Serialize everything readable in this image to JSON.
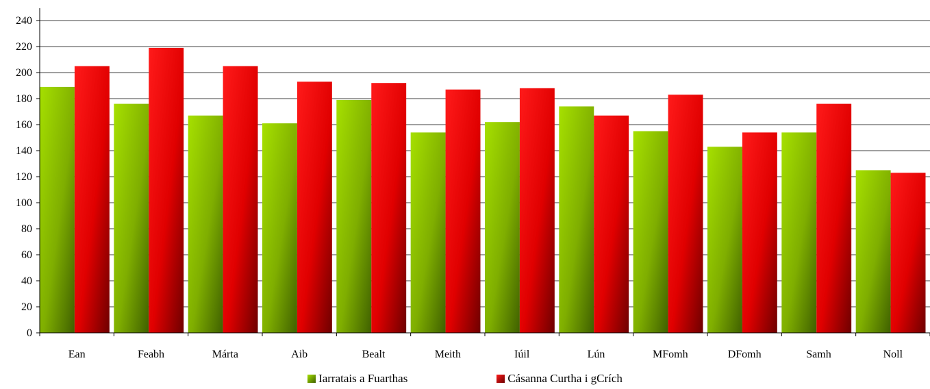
{
  "chart_data": {
    "type": "bar",
    "categories": [
      "Ean",
      "Feabh",
      "Márta",
      "Aib",
      "Bealt",
      "Meith",
      "Iúil",
      "Lún",
      "MFomh",
      "DFomh",
      "Samh",
      "Noll"
    ],
    "series": [
      {
        "name": "Iarratais a Fuarthas",
        "values": [
          189,
          176,
          167,
          161,
          179,
          154,
          162,
          174,
          155,
          143,
          154,
          125
        ],
        "color": "#8cc800"
      },
      {
        "name": "Cásanna Curtha i gCrích",
        "values": [
          205,
          219,
          205,
          193,
          192,
          187,
          188,
          167,
          183,
          154,
          176,
          123
        ],
        "color": "#ff0000"
      }
    ],
    "ylim": [
      0,
      240
    ],
    "yticks": [
      0,
      20,
      40,
      60,
      80,
      100,
      120,
      140,
      160,
      180,
      200,
      220,
      240
    ],
    "grid": true,
    "legend_position": "bottom"
  }
}
